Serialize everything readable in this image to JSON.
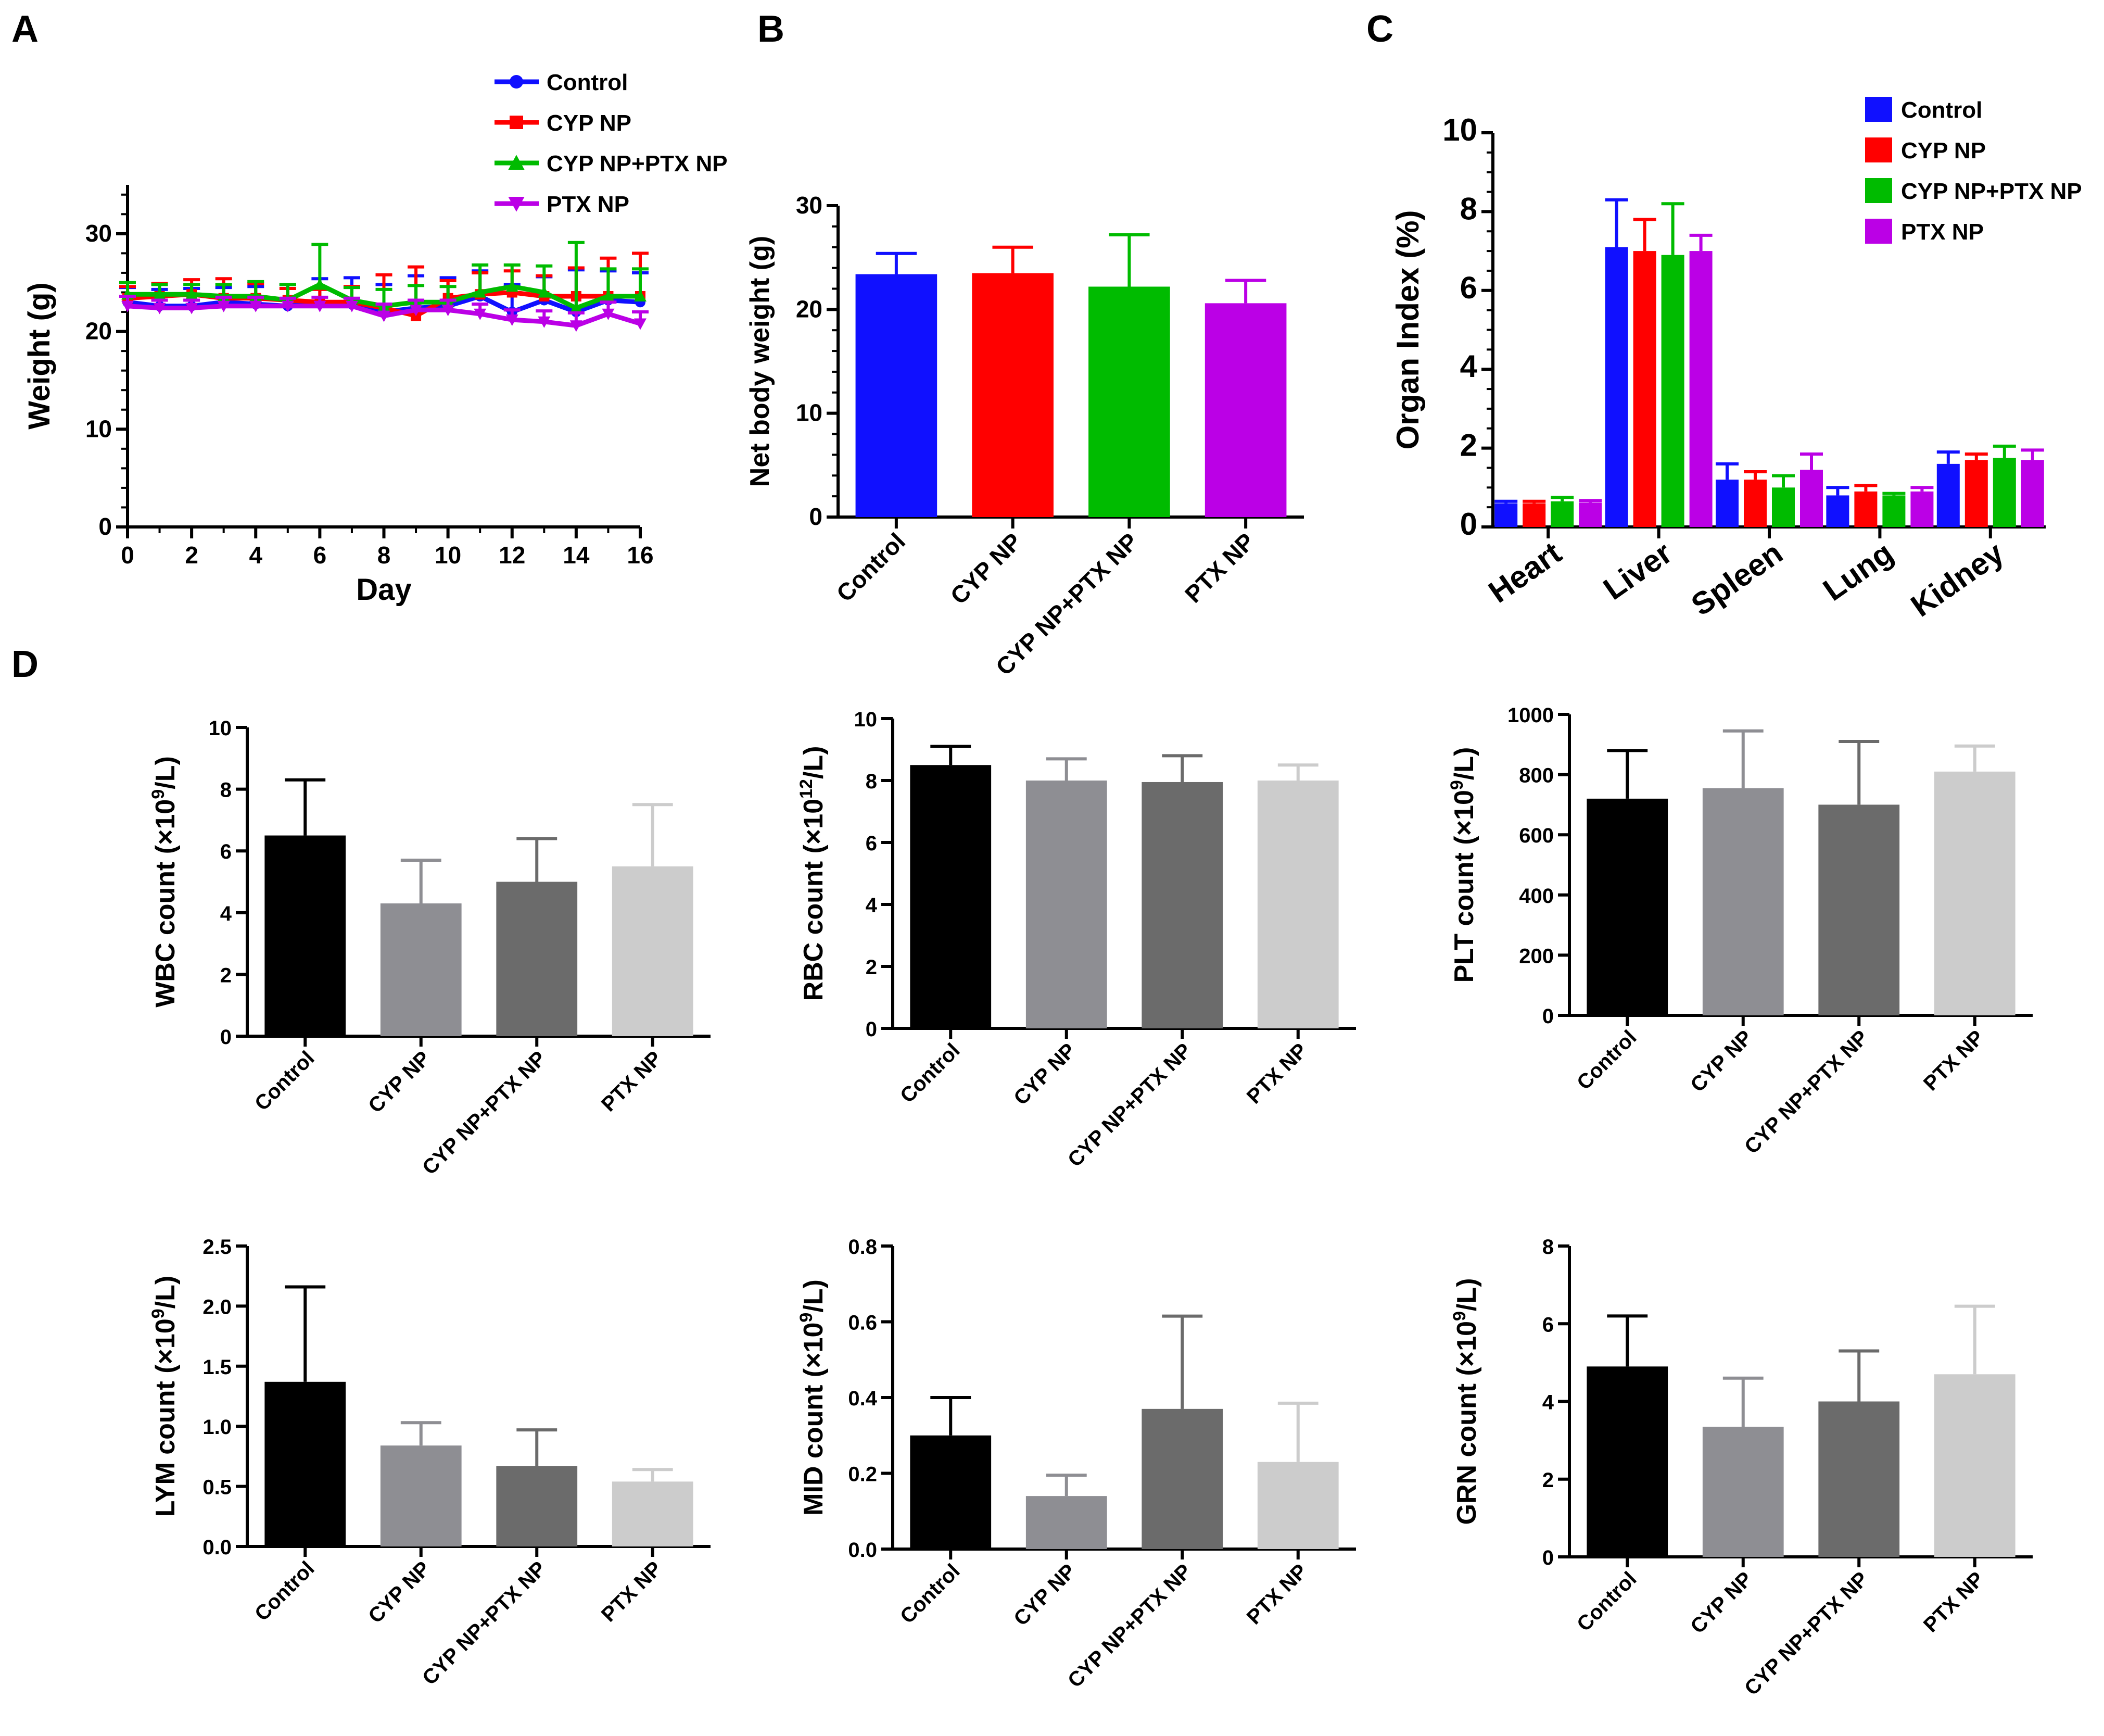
{
  "panels": {
    "a": "A",
    "b": "B",
    "c": "C",
    "d": "D"
  },
  "colors": {
    "control": "#1010ff",
    "cyp_np": "#ff0000",
    "cyp_ptx_np": "#00bb00",
    "ptx_np": "#bb00e6",
    "gray_control": "#000000",
    "gray_cyp_np": "#8e8e93",
    "gray_cyp_ptx_np": "#6b6b6b",
    "gray_ptx_np": "#cccccc"
  },
  "chart_data": [
    {
      "id": "A",
      "type": "line",
      "xlabel": "Day",
      "ylabel": "Weight (g)",
      "xlim": [
        0,
        16
      ],
      "ylim": [
        0,
        35
      ],
      "xticks": [
        0,
        2,
        4,
        6,
        8,
        10,
        12,
        14,
        16
      ],
      "yticks": [
        0,
        10,
        20,
        30
      ],
      "legend": [
        "Control",
        "CYP NP",
        "CYP NP+PTX NP",
        "PTX NP"
      ],
      "x": [
        0,
        1,
        2,
        3,
        4,
        5,
        6,
        7,
        8,
        9,
        10,
        11,
        12,
        13,
        14,
        15,
        16
      ],
      "series": [
        {
          "name": "Control",
          "marker": "circle",
          "values": [
            23.0,
            22.6,
            22.6,
            23.0,
            22.8,
            22.6,
            23.0,
            22.8,
            22.0,
            22.4,
            22.6,
            23.6,
            22.0,
            23.2,
            22.0,
            23.2,
            23.0
          ],
          "errors": [
            1.5,
            1.7,
            1.8,
            1.5,
            1.8,
            2.2,
            2.4,
            2.7,
            2.8,
            3.3,
            2.9,
            2.6,
            2.8,
            2.4,
            4.3,
            3.0,
            3.0
          ]
        },
        {
          "name": "CYP NP",
          "marker": "square",
          "values": [
            23.4,
            23.6,
            23.8,
            23.4,
            23.4,
            23.2,
            23.0,
            23.0,
            22.4,
            21.6,
            23.4,
            23.8,
            24.0,
            23.6,
            23.6,
            23.6,
            23.6
          ],
          "errors": [
            1.2,
            1.3,
            1.5,
            2.0,
            1.5,
            1.2,
            1.3,
            1.6,
            3.4,
            5.0,
            1.8,
            2.2,
            2.2,
            2.1,
            2.9,
            3.9,
            4.4
          ]
        },
        {
          "name": "CYP NP+PTX NP",
          "marker": "triangle",
          "values": [
            23.8,
            23.8,
            23.8,
            23.6,
            23.6,
            23.2,
            24.8,
            23.2,
            22.6,
            23.0,
            23.0,
            24.0,
            24.6,
            24.0,
            22.4,
            23.6,
            23.6
          ],
          "errors": [
            1.2,
            1.0,
            1.0,
            1.2,
            1.5,
            1.6,
            4.1,
            1.3,
            1.7,
            1.7,
            1.6,
            2.8,
            2.2,
            2.7,
            6.7,
            2.8,
            2.8
          ]
        },
        {
          "name": "PTX NP",
          "marker": "triangle-down",
          "values": [
            22.6,
            22.4,
            22.4,
            22.6,
            22.6,
            22.6,
            22.6,
            22.6,
            21.6,
            22.2,
            22.2,
            21.8,
            21.2,
            21.0,
            20.6,
            21.8,
            20.8
          ],
          "errors": [
            1.0,
            0.8,
            0.8,
            0.9,
            0.9,
            0.8,
            0.9,
            0.8,
            1.2,
            1.0,
            1.0,
            1.0,
            1.0,
            1.1,
            1.3,
            1.2,
            1.2
          ]
        }
      ]
    },
    {
      "id": "B",
      "type": "bar",
      "ylabel": "Net body weight (g)",
      "ylim": [
        0,
        30
      ],
      "yticks": [
        0,
        10,
        20,
        30
      ],
      "categories": [
        "Control",
        "CYP NP",
        "CYP NP+PTX NP",
        "PTX NP"
      ],
      "values": [
        23.4,
        23.5,
        22.2,
        20.6
      ],
      "errors": [
        2.0,
        2.5,
        5.0,
        2.2
      ]
    },
    {
      "id": "C",
      "type": "bar",
      "ylabel": "Organ Index (%)",
      "ylim": [
        0,
        10
      ],
      "yticks": [
        0,
        2,
        4,
        6,
        8,
        10
      ],
      "yticklabels": [
        "0",
        "2",
        "4",
        "6",
        "8",
        "10"
      ],
      "categories": [
        "Heart",
        "Liver",
        "Spleen",
        "Lung",
        "Kidney"
      ],
      "legend": [
        "Control",
        "CYP NP",
        "CYP NP+PTX NP",
        "PTX NP"
      ],
      "series": [
        {
          "name": "Control",
          "values": [
            0.6,
            7.1,
            1.2,
            0.8,
            1.6
          ],
          "errors": [
            0.05,
            1.2,
            0.4,
            0.2,
            0.3
          ]
        },
        {
          "name": "CYP NP",
          "values": [
            0.6,
            7.0,
            1.2,
            0.9,
            1.7
          ],
          "errors": [
            0.05,
            0.8,
            0.2,
            0.15,
            0.15
          ]
        },
        {
          "name": "CYP NP+PTX NP",
          "values": [
            0.65,
            6.9,
            1.0,
            0.8,
            1.75
          ],
          "errors": [
            0.1,
            1.3,
            0.3,
            0.05,
            0.3
          ]
        },
        {
          "name": "PTX NP",
          "values": [
            0.62,
            7.0,
            1.45,
            0.9,
            1.7
          ],
          "errors": [
            0.05,
            0.4,
            0.4,
            0.1,
            0.25
          ]
        }
      ]
    },
    {
      "id": "WBC",
      "type": "bar",
      "ylabel_pre": "WBC count (×10",
      "ylabel_sup": "9",
      "ylabel_post": "/L)",
      "ylim": [
        0,
        10
      ],
      "yticks": [
        0,
        2,
        4,
        6,
        8,
        10
      ],
      "categories": [
        "Control",
        "CYP NP",
        "CYP NP+PTX NP",
        "PTX NP"
      ],
      "values": [
        6.5,
        4.3,
        5.0,
        5.5
      ],
      "errors": [
        1.8,
        1.4,
        1.4,
        2.0
      ]
    },
    {
      "id": "RBC",
      "type": "bar",
      "ylabel_pre": "RBC count (×10",
      "ylabel_sup": "12",
      "ylabel_post": "/L)",
      "ylim": [
        0,
        10
      ],
      "yticks": [
        0,
        2,
        4,
        6,
        8,
        10
      ],
      "categories": [
        "Control",
        "CYP NP",
        "CYP NP+PTX NP",
        "PTX NP"
      ],
      "values": [
        8.5,
        8.0,
        7.95,
        8.0
      ],
      "errors": [
        0.6,
        0.7,
        0.85,
        0.5
      ]
    },
    {
      "id": "PLT",
      "type": "bar",
      "ylabel_pre": "PLT count (×10",
      "ylabel_sup": "9",
      "ylabel_post": "/L)",
      "ylim": [
        0,
        1000
      ],
      "yticks": [
        0,
        200,
        400,
        600,
        800,
        1000
      ],
      "categories": [
        "Control",
        "CYP NP",
        "CYP NP+PTX NP",
        "PTX NP"
      ],
      "values": [
        720,
        755,
        700,
        810
      ],
      "errors": [
        160,
        190,
        210,
        85
      ]
    },
    {
      "id": "LYM",
      "type": "bar",
      "ylabel_pre": "LYM count (×10",
      "ylabel_sup": "9",
      "ylabel_post": "/L)",
      "ylim": [
        0,
        2.5
      ],
      "yticks": [
        0,
        0.5,
        1.0,
        1.5,
        2.0,
        2.5
      ],
      "yticklabels": [
        "0.0",
        "0.5",
        "1.0",
        "1.5",
        "2.0",
        "2.5"
      ],
      "categories": [
        "Control",
        "CYP NP",
        "CYP NP+PTX NP",
        "PTX NP"
      ],
      "values": [
        1.37,
        0.84,
        0.67,
        0.54
      ],
      "errors": [
        0.79,
        0.19,
        0.3,
        0.1
      ]
    },
    {
      "id": "MID",
      "type": "bar",
      "ylabel_pre": "MID count (×10",
      "ylabel_sup": "9",
      "ylabel_post": "/L)",
      "ylim": [
        0,
        0.8
      ],
      "yticks": [
        0,
        0.2,
        0.4,
        0.6,
        0.8
      ],
      "yticklabels": [
        "0.0",
        "0.2",
        "0.4",
        "0.6",
        "0.8"
      ],
      "categories": [
        "Control",
        "CYP NP",
        "CYP NP+PTX NP",
        "PTX NP"
      ],
      "values": [
        0.3,
        0.14,
        0.37,
        0.23
      ],
      "errors": [
        0.1,
        0.055,
        0.245,
        0.155
      ]
    },
    {
      "id": "GRN",
      "type": "bar",
      "ylabel_pre": "GRN count (×10",
      "ylabel_sup": "9",
      "ylabel_post": "/L)",
      "ylim": [
        0,
        8
      ],
      "yticks": [
        0,
        2,
        4,
        6,
        8
      ],
      "categories": [
        "Control",
        "CYP NP",
        "CYP NP+PTX NP",
        "PTX NP"
      ],
      "values": [
        4.9,
        3.35,
        4.0,
        4.7
      ],
      "errors": [
        1.3,
        1.25,
        1.3,
        1.75
      ]
    }
  ]
}
